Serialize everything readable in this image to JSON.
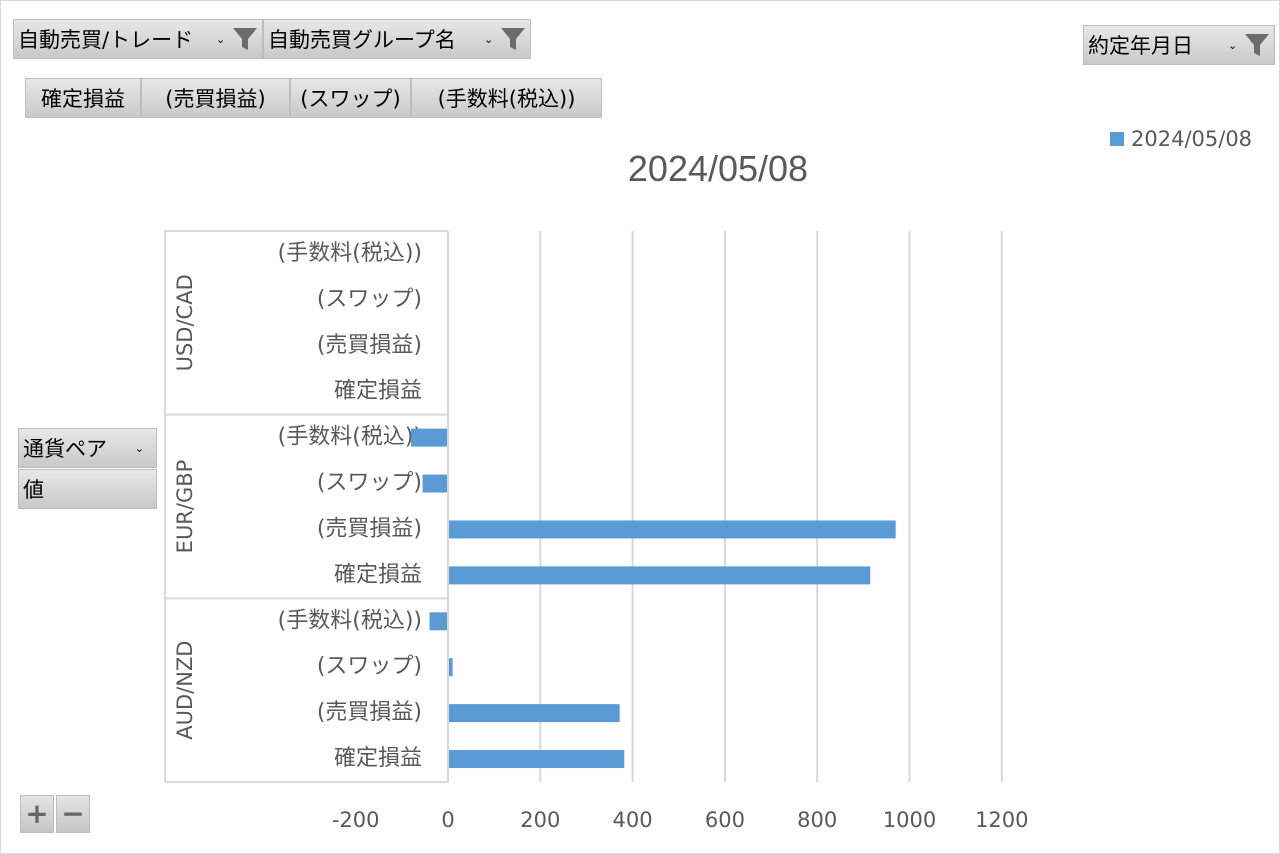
{
  "filters": {
    "trade": {
      "label": "自動売買/トレード",
      "icon": "filter-icon"
    },
    "group": {
      "label": "自動売買グループ名",
      "icon": "filter-icon"
    },
    "date": {
      "label": "約定年月日",
      "icon": "filter-icon"
    }
  },
  "value_fields": [
    "確定損益",
    "(売買損益)",
    "(スワップ)",
    "(手数料(税込))"
  ],
  "axis_fields": {
    "row": "通貨ペア",
    "value": "値"
  },
  "zoom": {
    "plus": "+",
    "minus": "−"
  },
  "legend": {
    "label": "2024/05/08",
    "color": "#5b9bd5"
  },
  "chart_data": {
    "type": "bar",
    "orientation": "horizontal",
    "title": "2024/05/08",
    "xlim": [
      -200,
      1200
    ],
    "xticks": [
      -200,
      0,
      200,
      400,
      600,
      800,
      1000,
      1200
    ],
    "grid": true,
    "legend_position": "top-right",
    "groups": [
      {
        "name": "USD/CAD",
        "categories": [
          "(手数料(税込))",
          "(スワップ)",
          "(売買損益)",
          "確定損益"
        ],
        "values": [
          0,
          0,
          0,
          0
        ]
      },
      {
        "name": "EUR/GBP",
        "categories": [
          "(手数料(税込))",
          "(スワップ)",
          "(売買損益)",
          "確定損益"
        ],
        "values": [
          -80,
          -55,
          970,
          915
        ]
      },
      {
        "name": "AUD/NZD",
        "categories": [
          "(手数料(税込))",
          "(スワップ)",
          "(売買損益)",
          "確定損益"
        ],
        "values": [
          -40,
          10,
          372,
          382
        ]
      }
    ],
    "series": [
      {
        "name": "2024/05/08",
        "color": "#5b9bd5"
      }
    ]
  }
}
